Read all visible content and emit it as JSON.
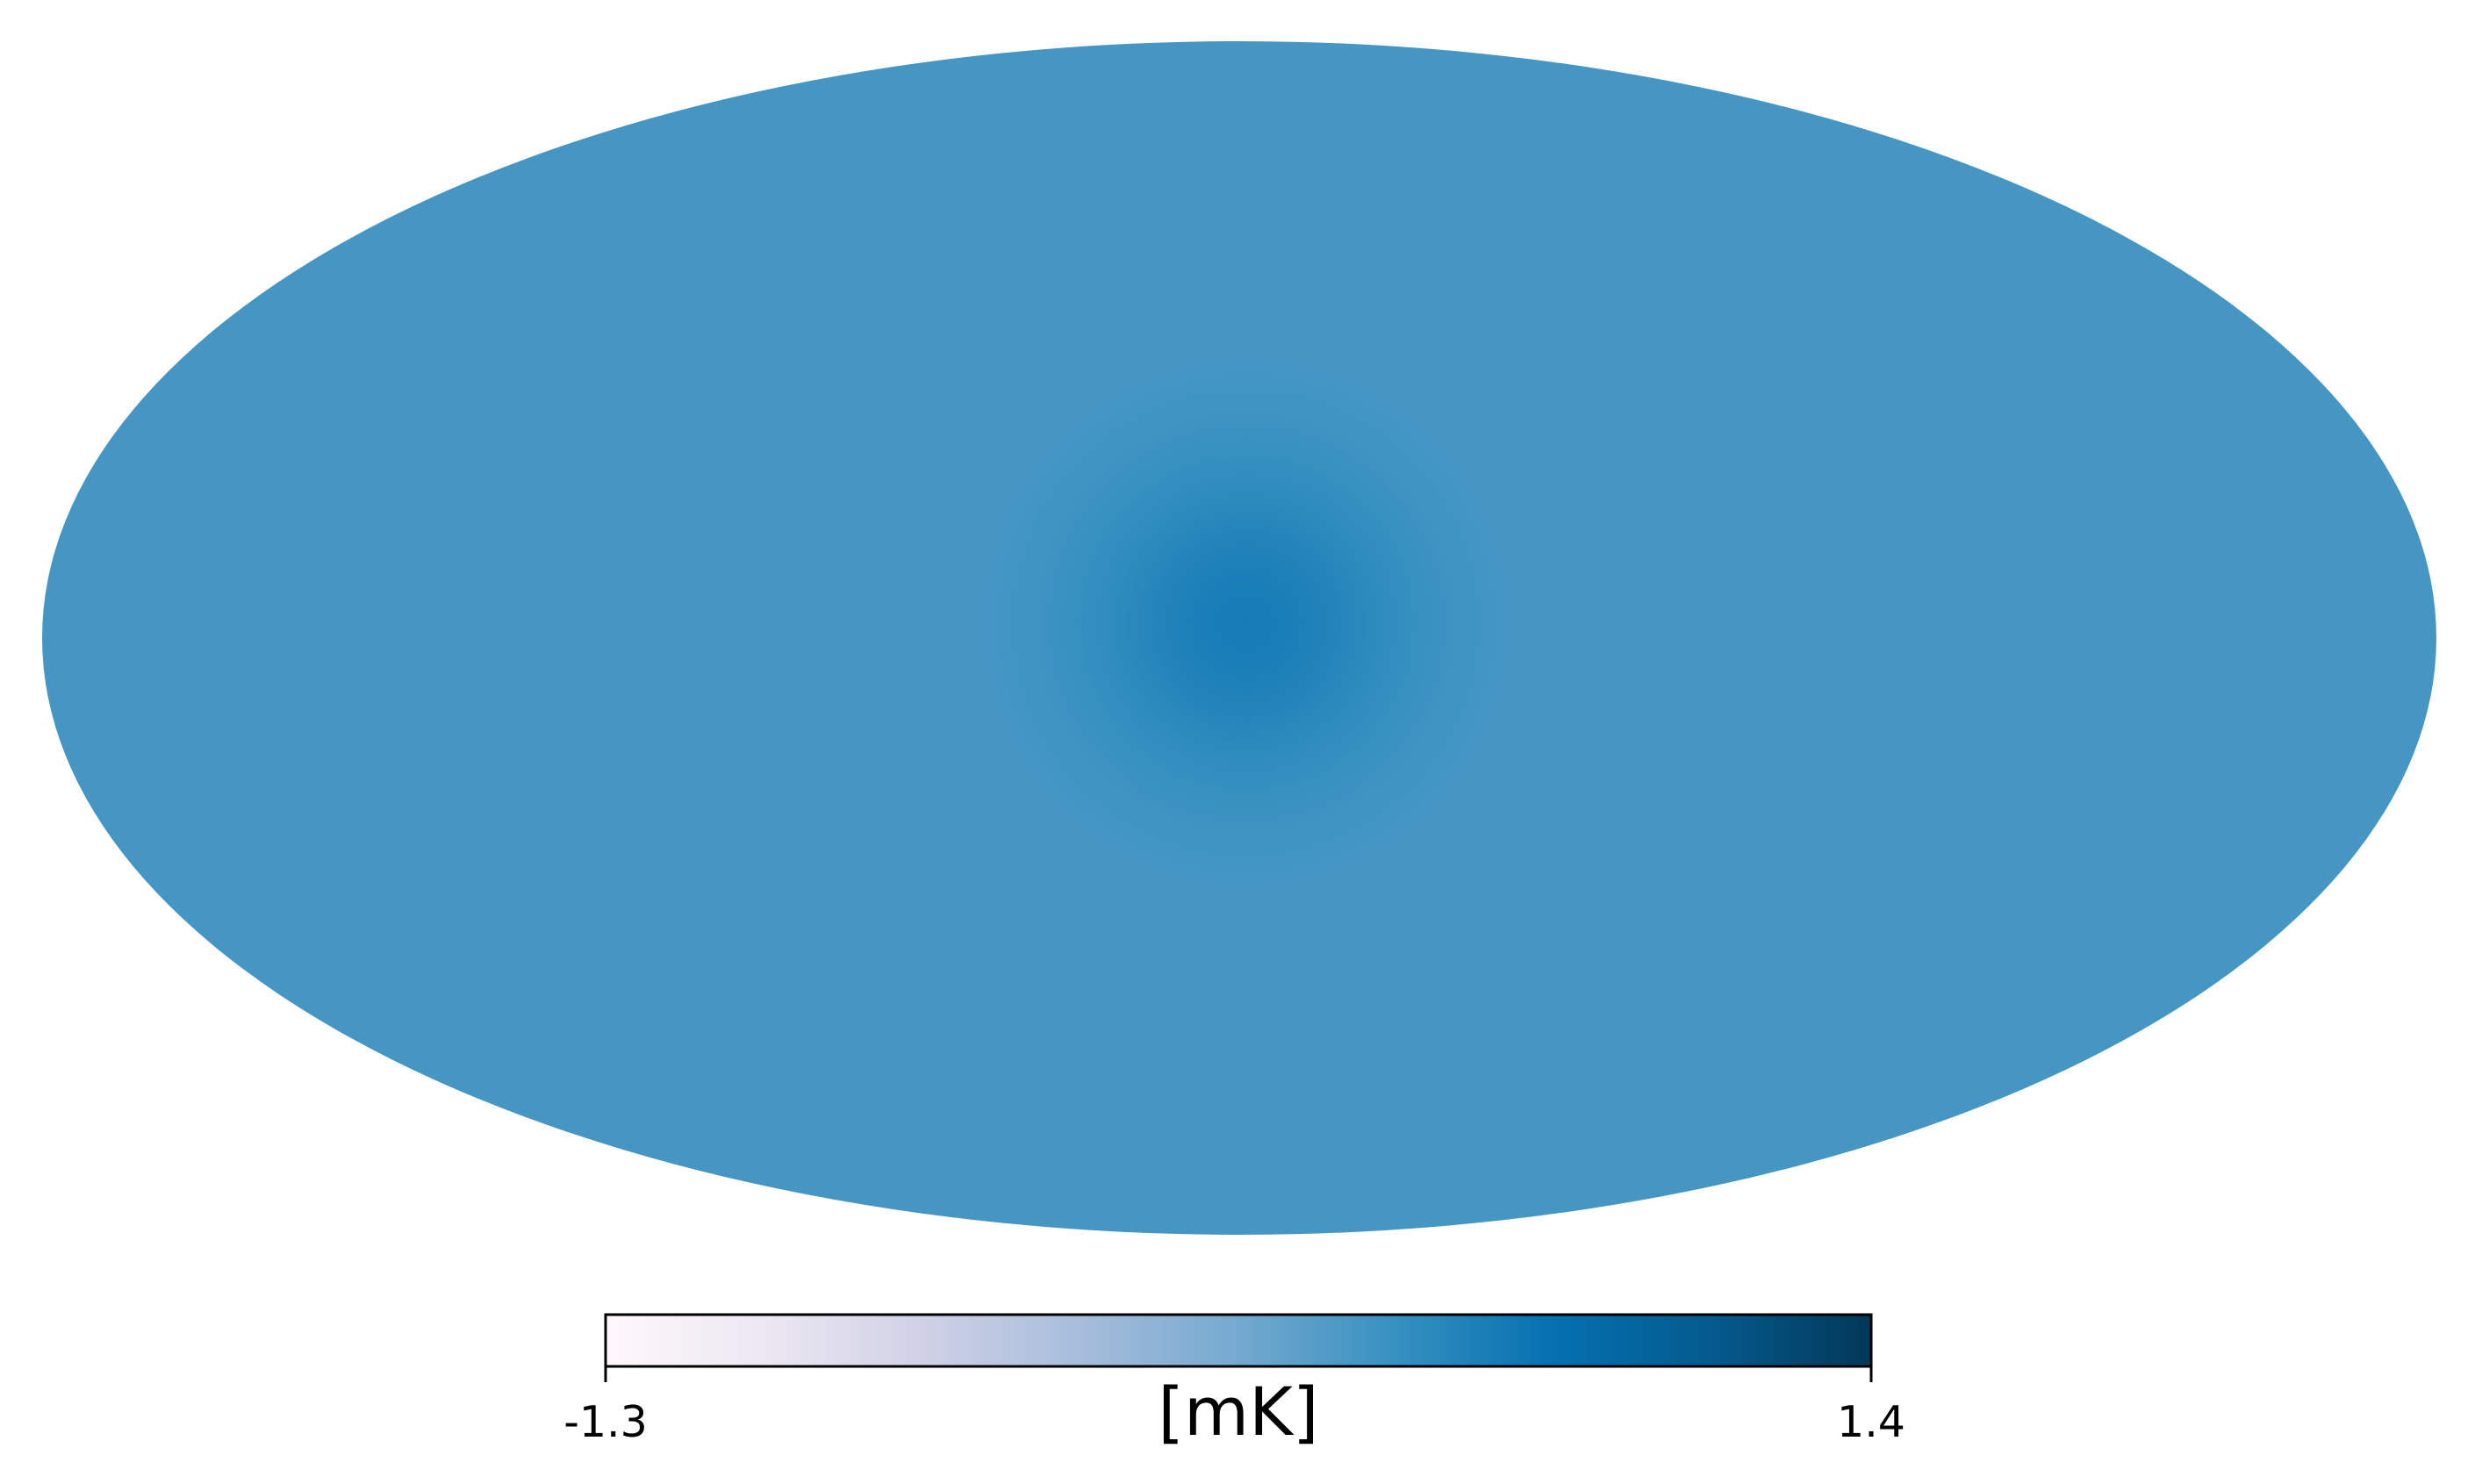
{
  "chart_data": {
    "type": "heatmap",
    "projection": "mollweide",
    "title": "",
    "map": {
      "background_value_mK": 0.3,
      "hotspot": {
        "lon_deg": 0,
        "lat_deg": 0,
        "peak_value_mK": 0.6
      }
    },
    "colorbar": {
      "orientation": "horizontal",
      "colormap": "PuBu",
      "min": -1.3,
      "max": 1.4,
      "min_label": "-1.3",
      "max_label": "1.4",
      "unit_label": "[mK]",
      "color_stops": [
        "#fff7fb",
        "#ece7f2",
        "#d0d1e6",
        "#a6bddb",
        "#74a9cf",
        "#3690c0",
        "#0570b0",
        "#045a8d",
        "#023858"
      ]
    }
  }
}
